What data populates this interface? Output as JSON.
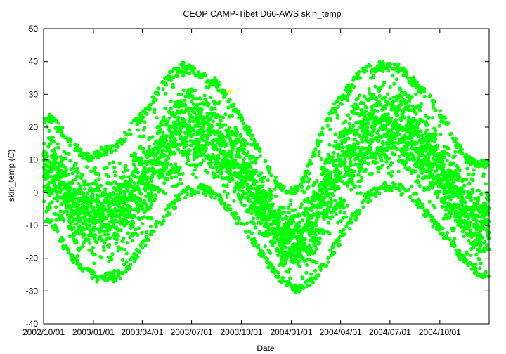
{
  "chart_data": {
    "type": "scatter",
    "title": "CEOP CAMP-Tibet D66-AWS  skin_temp",
    "xlabel": "Date",
    "ylabel": "skin_temp (C)",
    "xlim": [
      "2002-10-01",
      "2004-12-31"
    ],
    "ylim": [
      -40,
      50
    ],
    "yticks": [
      -40,
      -30,
      -20,
      -10,
      0,
      10,
      20,
      30,
      40,
      50
    ],
    "xticks": [
      "2002/10/01",
      "2003/01/01",
      "2003/04/01",
      "2003/07/01",
      "2003/10/01",
      "2004/01/01",
      "2004/04/01",
      "2004/07/01",
      "2004/10/01"
    ],
    "grid": false,
    "series": [
      {
        "color": "#00ff00",
        "description": "hourly skin temperature, strong diurnal scatter",
        "monthly_envelope": [
          {
            "x": "2002-10-15",
            "ymin": -10,
            "ymax": 24
          },
          {
            "x": "2002-11-15",
            "ymin": -20,
            "ymax": 18
          },
          {
            "x": "2002-12-15",
            "ymin": -25,
            "ymax": 12
          },
          {
            "x": "2003-01-15",
            "ymin": -28,
            "ymax": 14
          },
          {
            "x": "2003-02-15",
            "ymin": -27,
            "ymax": 16
          },
          {
            "x": "2003-03-15",
            "ymin": -22,
            "ymax": 22
          },
          {
            "x": "2003-04-15",
            "ymin": -15,
            "ymax": 28
          },
          {
            "x": "2003-05-15",
            "ymin": -8,
            "ymax": 36
          },
          {
            "x": "2003-06-15",
            "ymin": -2,
            "ymax": 40
          },
          {
            "x": "2003-07-15",
            "ymin": 0,
            "ymax": 38
          },
          {
            "x": "2003-08-15",
            "ymin": -2,
            "ymax": 35
          },
          {
            "x": "2003-09-15",
            "ymin": -8,
            "ymax": 28
          },
          {
            "x": "2003-10-15",
            "ymin": -14,
            "ymax": 20
          },
          {
            "x": "2003-11-15",
            "ymin": -22,
            "ymax": 10
          },
          {
            "x": "2003-12-15",
            "ymin": -28,
            "ymax": 2
          },
          {
            "x": "2004-01-15",
            "ymin": -31,
            "ymax": 2
          },
          {
            "x": "2004-02-15",
            "ymin": -28,
            "ymax": 15
          },
          {
            "x": "2004-03-15",
            "ymin": -20,
            "ymax": 26
          },
          {
            "x": "2004-04-15",
            "ymin": -12,
            "ymax": 33
          },
          {
            "x": "2004-05-15",
            "ymin": -4,
            "ymax": 40
          },
          {
            "x": "2004-06-15",
            "ymin": 0,
            "ymax": 40
          },
          {
            "x": "2004-07-15",
            "ymin": 0,
            "ymax": 40
          },
          {
            "x": "2004-08-15",
            "ymin": -3,
            "ymax": 35
          },
          {
            "x": "2004-09-15",
            "ymin": -10,
            "ymax": 30
          },
          {
            "x": "2004-10-15",
            "ymin": -15,
            "ymax": 22
          },
          {
            "x": "2004-11-15",
            "ymin": -22,
            "ymax": 12
          },
          {
            "x": "2004-12-15",
            "ymin": -27,
            "ymax": 10
          }
        ]
      },
      {
        "color": "#ffff00",
        "description": "single highlighted point",
        "points": [
          {
            "x": "2003-09-10",
            "y": 31
          }
        ]
      }
    ]
  }
}
